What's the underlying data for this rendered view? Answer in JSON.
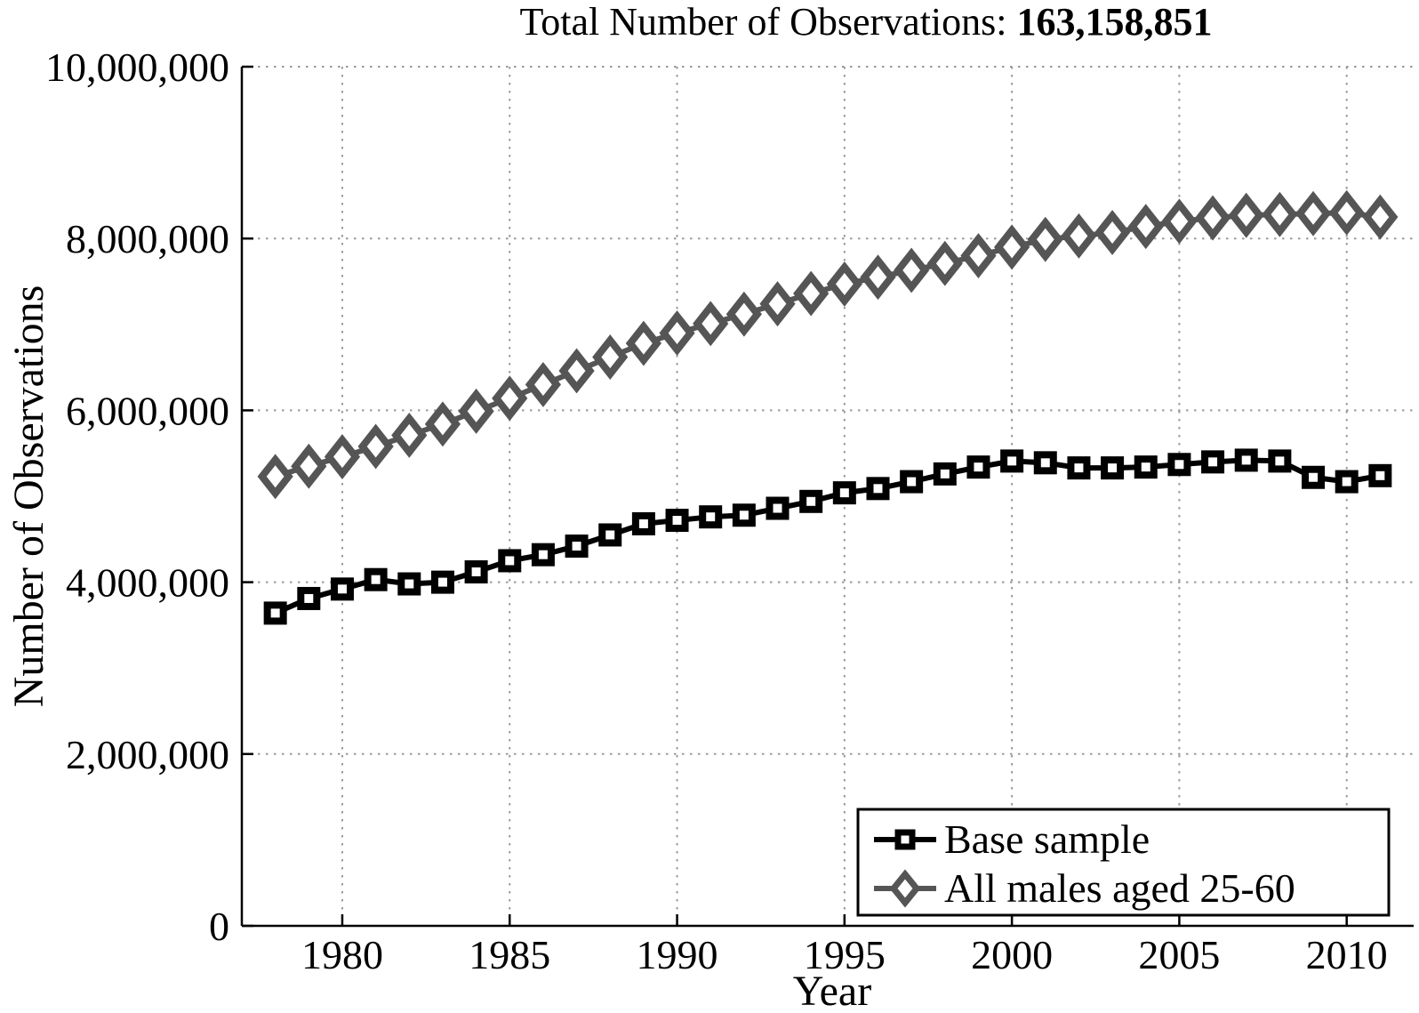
{
  "title": {
    "prefix": "Total Number of Observations: ",
    "total_bold": "163,158,851"
  },
  "y_axis": {
    "label": "Number of Observations",
    "tick_labels": [
      "0",
      "2,000,000",
      "4,000,000",
      "6,000,000",
      "8,000,000",
      "10,000,000"
    ],
    "tick_values": [
      0,
      2000000,
      4000000,
      6000000,
      8000000,
      10000000
    ]
  },
  "x_axis": {
    "label": "Year",
    "tick_labels": [
      "1980",
      "1985",
      "1990",
      "1995",
      "2000",
      "2005",
      "2010"
    ],
    "tick_values": [
      1980,
      1985,
      1990,
      1995,
      2000,
      2005,
      2010
    ]
  },
  "legend": {
    "items": [
      {
        "label": "Base sample",
        "marker": "square",
        "color": "#000000"
      },
      {
        "label": "All males aged 25-60",
        "marker": "diamond",
        "color": "#555555"
      }
    ]
  },
  "colors": {
    "base_sample": "#000000",
    "all_males": "#555555",
    "grid": "#999999",
    "axis": "#000000",
    "background": "#ffffff"
  },
  "chart_data": {
    "type": "line",
    "title": "Total Number of Observations: 163,158,851",
    "xlabel": "Year",
    "ylabel": "Number of Observations",
    "xlim": [
      1977,
      2012
    ],
    "ylim": [
      0,
      10000000
    ],
    "grid": "dotted",
    "legend_position": "lower right",
    "x": [
      1978,
      1979,
      1980,
      1981,
      1982,
      1983,
      1984,
      1985,
      1986,
      1987,
      1988,
      1989,
      1990,
      1991,
      1992,
      1993,
      1994,
      1995,
      1996,
      1997,
      1998,
      1999,
      2000,
      2001,
      2002,
      2003,
      2004,
      2005,
      2006,
      2007,
      2008,
      2009,
      2010,
      2011
    ],
    "series": [
      {
        "name": "Base sample",
        "color": "#000000",
        "marker": "square",
        "values": [
          3640000,
          3810000,
          3920000,
          4030000,
          3980000,
          4000000,
          4120000,
          4250000,
          4320000,
          4420000,
          4550000,
          4680000,
          4720000,
          4760000,
          4780000,
          4860000,
          4940000,
          5040000,
          5090000,
          5170000,
          5260000,
          5340000,
          5410000,
          5390000,
          5330000,
          5330000,
          5340000,
          5370000,
          5400000,
          5420000,
          5410000,
          5220000,
          5170000,
          5240000
        ]
      },
      {
        "name": "All males aged 25-60",
        "color": "#555555",
        "marker": "diamond",
        "values": [
          5230000,
          5350000,
          5460000,
          5580000,
          5710000,
          5840000,
          5990000,
          6140000,
          6300000,
          6460000,
          6620000,
          6780000,
          6900000,
          7010000,
          7120000,
          7240000,
          7360000,
          7470000,
          7550000,
          7630000,
          7710000,
          7800000,
          7900000,
          7990000,
          8030000,
          8070000,
          8140000,
          8200000,
          8240000,
          8270000,
          8280000,
          8290000,
          8300000,
          8250000
        ]
      }
    ]
  }
}
